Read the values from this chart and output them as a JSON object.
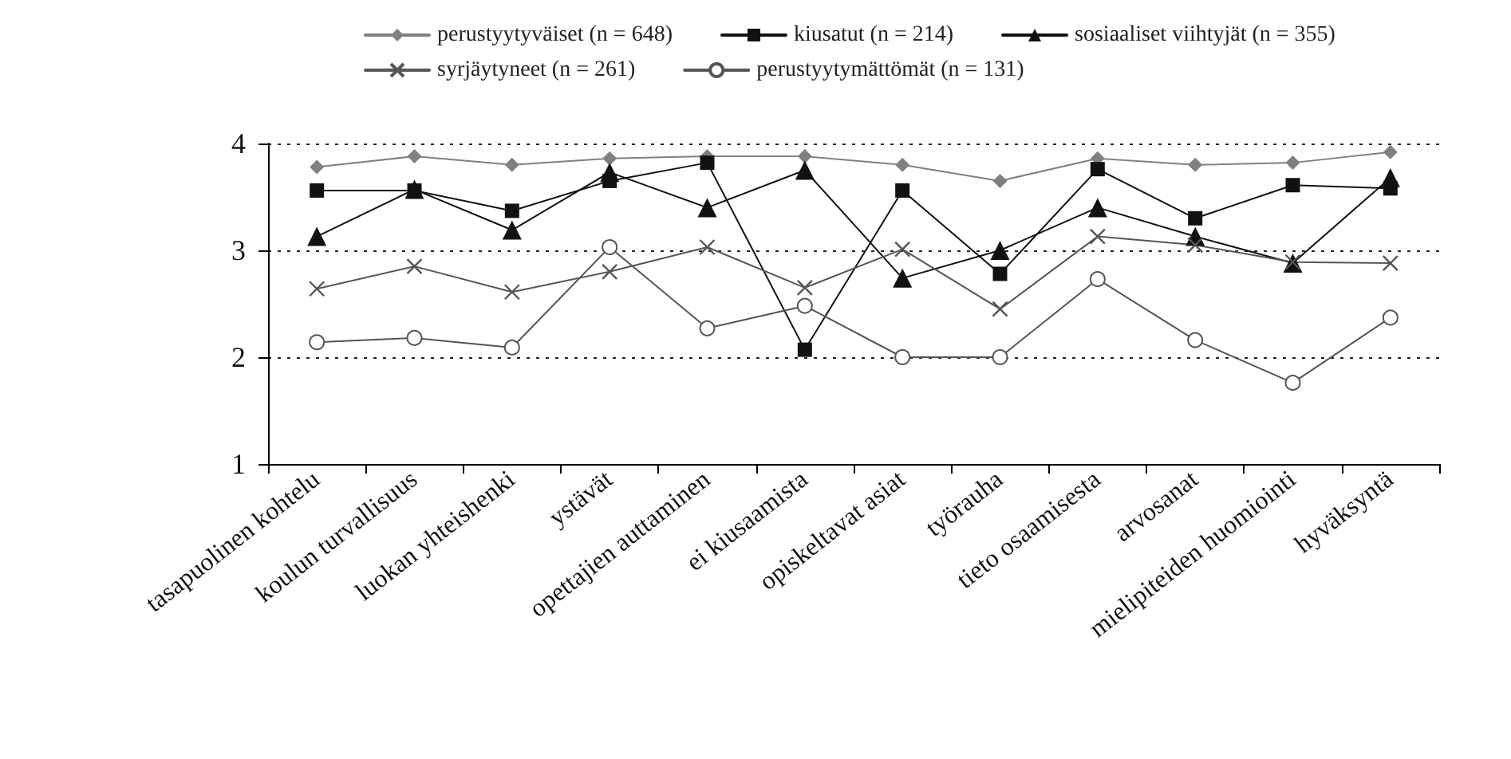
{
  "chart_data": {
    "type": "line",
    "categories": [
      "tasapuolinen kohtelu",
      "koulun turvallisuus",
      "luokan yhteishenki",
      "ystävät",
      "opettajien auttaminen",
      "ei kiusaamista",
      "opiskeltavat asiat",
      "työrauha",
      "tieto osaamisesta",
      "arvosanat",
      "mielipiteiden huomiointi",
      "hyväksyntä"
    ],
    "series": [
      {
        "name": "perustyytyväiset (n = 648)",
        "color": "#808080",
        "marker": "diamond",
        "values": [
          3.78,
          3.88,
          3.8,
          3.86,
          3.88,
          3.88,
          3.8,
          3.65,
          3.86,
          3.8,
          3.82,
          3.92
        ]
      },
      {
        "name": "kiusatut (n = 214)",
        "color": "#111111",
        "marker": "square",
        "values": [
          3.56,
          3.56,
          3.37,
          3.65,
          3.82,
          2.07,
          3.56,
          2.78,
          3.76,
          3.3,
          3.61,
          3.58
        ]
      },
      {
        "name": "sosiaaliset viihtyjät (n = 355)",
        "color": "#111111",
        "marker": "triangle",
        "values": [
          3.13,
          3.57,
          3.19,
          3.73,
          3.4,
          3.75,
          2.74,
          3.0,
          3.4,
          3.13,
          2.88,
          3.68
        ]
      },
      {
        "name": "syrjäytyneet (n = 261)",
        "color": "#555555",
        "marker": "cross",
        "values": [
          2.64,
          2.85,
          2.61,
          2.8,
          3.03,
          2.65,
          3.01,
          2.45,
          3.13,
          3.05,
          2.89,
          2.88
        ]
      },
      {
        "name": "perustyytymättömät (n = 131)",
        "color": "#555555",
        "marker": "circle",
        "values": [
          2.14,
          2.18,
          2.09,
          3.03,
          2.27,
          2.48,
          2.0,
          2.0,
          2.73,
          2.16,
          1.76,
          2.37
        ]
      }
    ],
    "ylim": [
      1,
      4
    ],
    "yticks": [
      1,
      2,
      3,
      4
    ],
    "grid": "y",
    "legend": "top",
    "line_style": "solid"
  }
}
